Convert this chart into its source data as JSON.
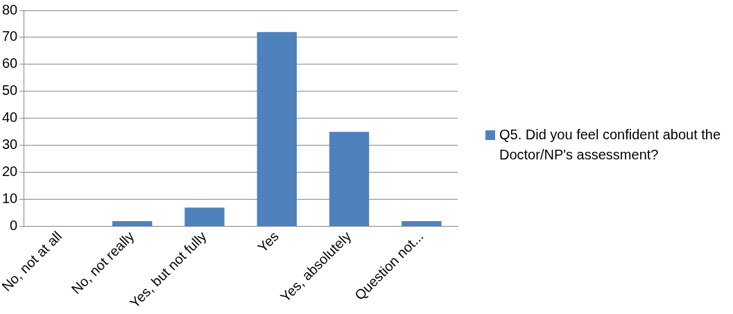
{
  "chart_data": {
    "type": "bar",
    "categories": [
      "No, not at all",
      "No, not really",
      "Yes, but not fully",
      "Yes",
      "Yes, absolutely",
      "Question not..."
    ],
    "series": [
      {
        "name": "Q5. Did you feel confident about the Doctor/NP's assessment?",
        "color": "#4f81bd",
        "values": [
          0,
          2,
          7,
          72,
          35,
          2
        ]
      }
    ],
    "ylim": [
      0,
      80
    ],
    "yticks": [
      0,
      10,
      20,
      30,
      40,
      50,
      60,
      70,
      80
    ],
    "grid": "y",
    "legend": "right"
  }
}
